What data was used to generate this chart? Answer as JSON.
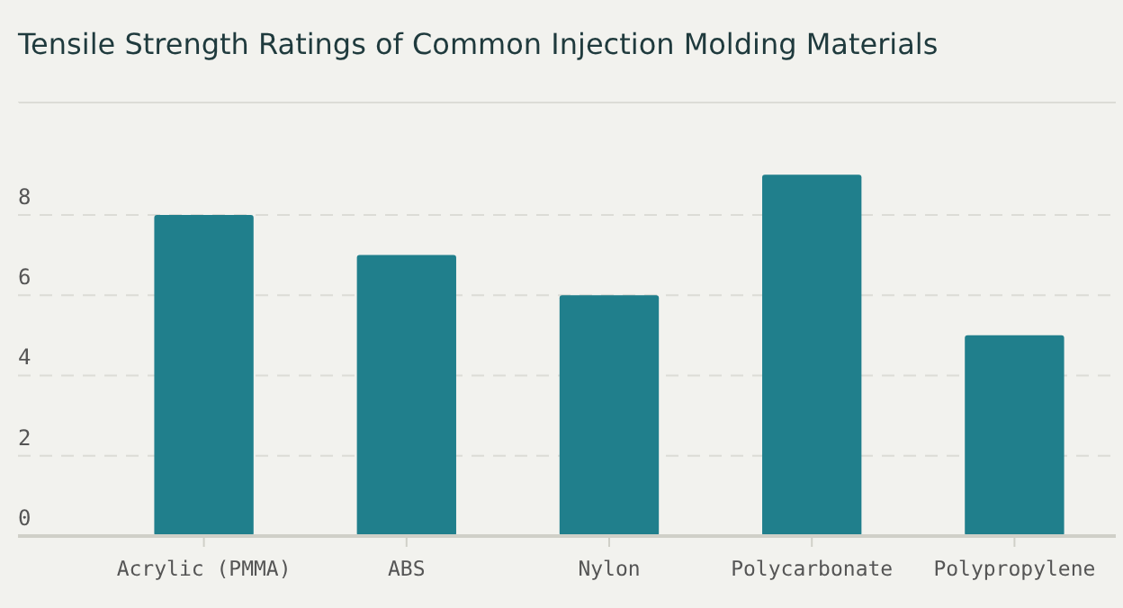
{
  "chart_data": {
    "type": "bar",
    "title": "Tensile Strength Ratings of Common Injection Molding Materials",
    "categories": [
      "Acrylic (PMMA)",
      "ABS",
      "Nylon",
      "Polycarbonate",
      "Polypropylene"
    ],
    "values": [
      8,
      7,
      6,
      9,
      5
    ],
    "color": "#207f8c",
    "ylim": [
      0,
      10.8
    ],
    "yticks": [
      0,
      2,
      4,
      6,
      8
    ],
    "grid": "y"
  }
}
